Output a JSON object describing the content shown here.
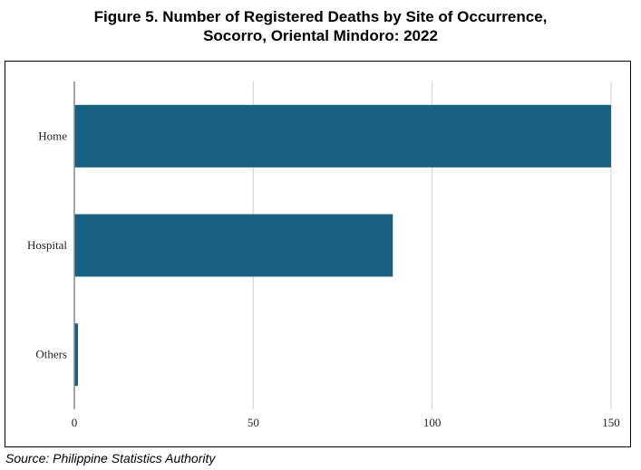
{
  "title_line1": "Figure 5. Number of Registered Deaths by Site of Occurrence,",
  "title_line2": "Socorro, Oriental Mindoro: 2022",
  "source": "Source: Philippine Statistics Authority",
  "colors": {
    "bar": "#17607f",
    "grid": "#d0d0d0",
    "axis": "#8a8a8a"
  },
  "chart_data": {
    "type": "bar",
    "orientation": "horizontal",
    "categories": [
      "Home",
      "Hospital",
      "Others"
    ],
    "values": [
      150,
      89,
      1
    ],
    "xlim": [
      0,
      150
    ],
    "xticks": [
      0,
      50,
      100,
      150
    ],
    "grid": true
  }
}
